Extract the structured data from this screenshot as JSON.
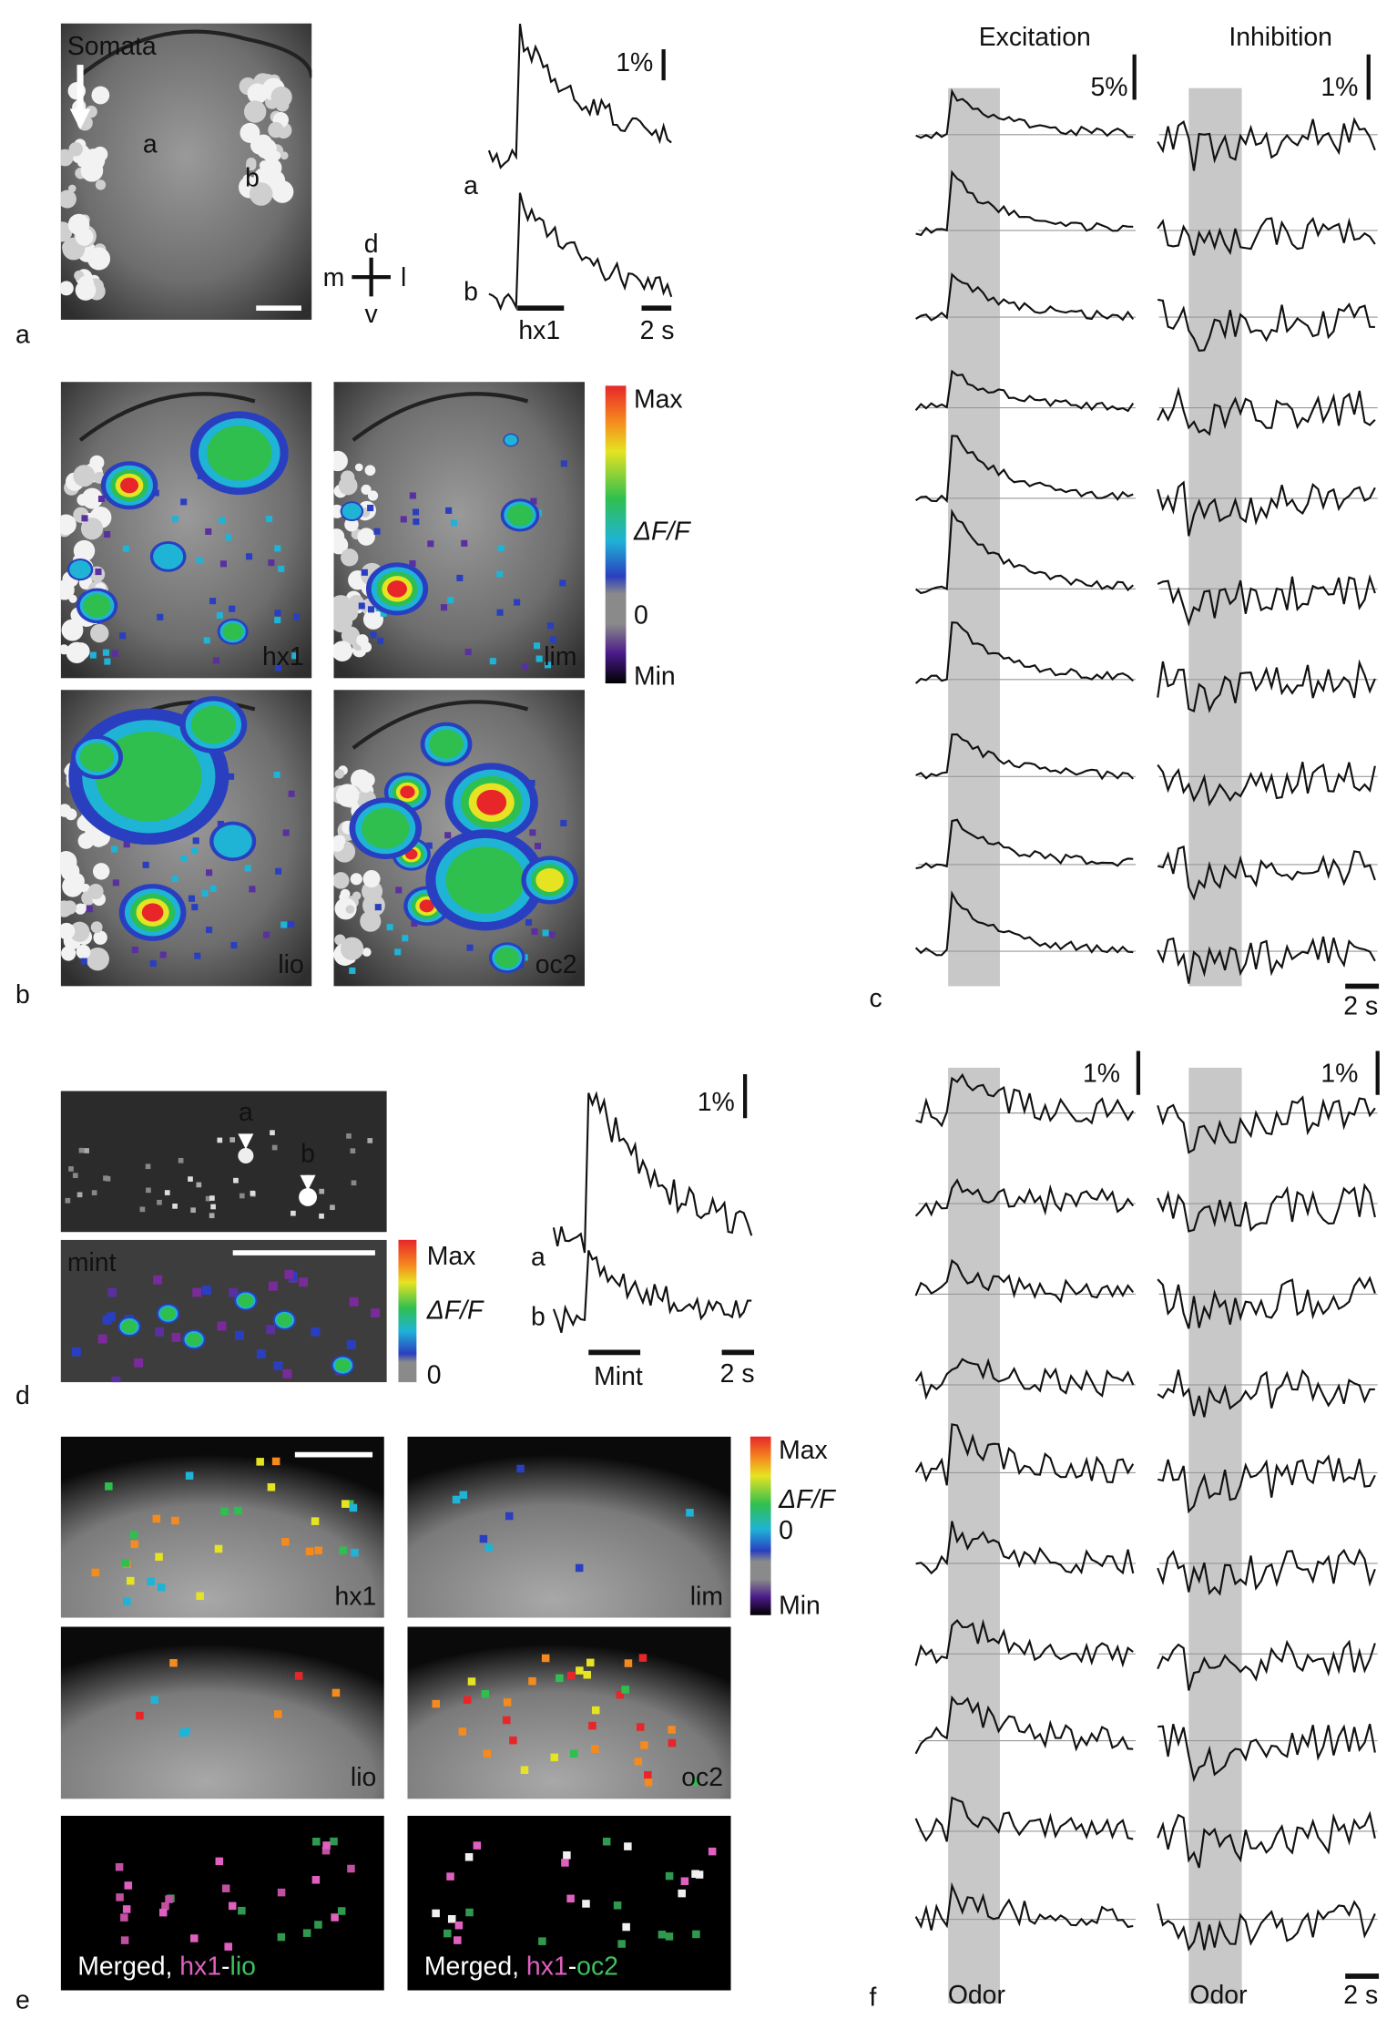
{
  "panel_labels": [
    "a",
    "b",
    "c",
    "d",
    "e",
    "f"
  ],
  "panel_a": {
    "somata": "Somata",
    "cell_labels": [
      "a",
      "b"
    ],
    "compass": {
      "d": "d",
      "m": "m",
      "l": "l",
      "v": "v"
    },
    "scale": "1%",
    "trace_labels": [
      "a",
      "b"
    ],
    "odor": "hx1",
    "time": "2 s"
  },
  "panel_b": {
    "odors": [
      "hx1",
      "lim",
      "lio",
      "oc2"
    ],
    "colorbar": [
      "Max",
      "ΔF/F",
      "0",
      "Min"
    ]
  },
  "panel_c": {
    "columns": [
      "Excitation",
      "Inhibition"
    ],
    "scales": [
      "5%",
      "1%"
    ],
    "time": "2 s"
  },
  "panel_d": {
    "cell_labels": [
      "a",
      "b"
    ],
    "odor_tag": "mint",
    "colorbar": [
      "Max",
      "ΔF/F",
      "0"
    ],
    "scale": "1%",
    "trace_labels": [
      "a",
      "b"
    ],
    "odor": "Mint",
    "time": "2 s"
  },
  "panel_e": {
    "odors": [
      "hx1",
      "lim",
      "lio",
      "oc2"
    ],
    "colorbar": [
      "Max",
      "ΔF/F",
      "0",
      "Min"
    ],
    "merged": [
      {
        "prefix": "Merged, ",
        "first": "hx1",
        "dash": "-",
        "second": "lio"
      },
      {
        "prefix": "Merged, ",
        "first": "hx1",
        "dash": "-",
        "second": "oc2"
      }
    ]
  },
  "panel_f": {
    "scales": [
      "1%",
      "1%"
    ],
    "stimulus": [
      "Odor",
      "Odor"
    ],
    "time": "2 s"
  }
}
